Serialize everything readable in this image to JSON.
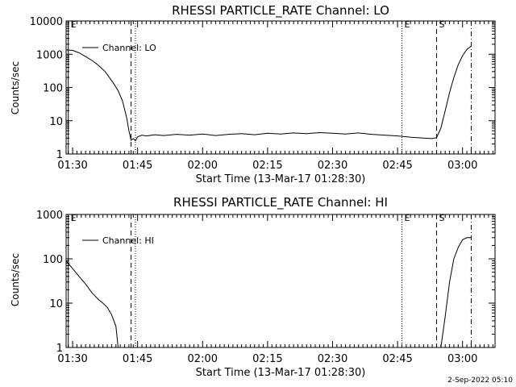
{
  "footer": {
    "timestamp": "2-Sep-2022 05:10"
  },
  "chart_data": [
    {
      "type": "line",
      "title": "RHESSI PARTICLE_RATE Channel: LO",
      "xlabel": "Start Time (13-Mar-17 01:28:30)",
      "ylabel": "Counts/sec",
      "y_scale": "log",
      "xlim": [
        "01:28:30",
        "03:07:30"
      ],
      "ylim": [
        1,
        10000
      ],
      "x_ticks": [
        "01:30",
        "01:45",
        "02:00",
        "02:15",
        "02:30",
        "02:45",
        "03:00"
      ],
      "y_ticks": [
        "1",
        "10",
        "100",
        "1000",
        "10000"
      ],
      "legend": {
        "label": "Channel: LO",
        "placement": "top-left"
      },
      "markers": [
        {
          "label": "E",
          "time": "01:29:00",
          "style": "solid"
        },
        {
          "label": "",
          "time": "01:43:30",
          "style": "dashed"
        },
        {
          "label": "",
          "time": "01:44:30",
          "style": "dotted"
        },
        {
          "label": "E",
          "time": "02:46:00",
          "style": "dotted"
        },
        {
          "label": "S",
          "time": "02:54:00",
          "style": "dashed"
        },
        {
          "label": "",
          "time": "03:02:00",
          "style": "dashdot"
        }
      ],
      "series": [
        {
          "name": "Channel: LO",
          "x": [
            "01:28:30",
            "01:30:00",
            "01:31:30",
            "01:33:00",
            "01:34:30",
            "01:36:00",
            "01:37:30",
            "01:38:30",
            "01:39:30",
            "01:40:30",
            "01:41:30",
            "01:42:30",
            "01:43:00",
            "01:43:30",
            "01:44:00",
            "01:44:30",
            "01:45:00",
            "01:46:00",
            "01:47:00",
            "01:49:00",
            "01:51:00",
            "01:54:00",
            "01:57:00",
            "02:00:00",
            "02:03:00",
            "02:06:00",
            "02:09:00",
            "02:12:00",
            "02:15:00",
            "02:18:00",
            "02:21:00",
            "02:24:00",
            "02:27:00",
            "02:30:00",
            "02:33:00",
            "02:36:00",
            "02:39:00",
            "02:42:00",
            "02:45:00",
            "02:48:00",
            "02:51:00",
            "02:53:00",
            "02:54:00",
            "02:55:00",
            "02:56:00",
            "02:57:00",
            "02:58:00",
            "02:59:00",
            "03:00:00",
            "03:01:00",
            "03:02:00"
          ],
          "values": [
            1350,
            1300,
            1100,
            850,
            650,
            460,
            300,
            200,
            130,
            80,
            40,
            12,
            5,
            2.6,
            2.9,
            2.5,
            3.3,
            3.7,
            3.5,
            3.8,
            3.6,
            3.9,
            3.7,
            4.0,
            3.6,
            3.9,
            4.1,
            3.8,
            4.2,
            4.0,
            4.3,
            4.1,
            4.4,
            4.2,
            4.0,
            4.3,
            3.9,
            3.7,
            3.5,
            3.2,
            3.0,
            2.9,
            3.1,
            6,
            20,
            70,
            200,
            480,
            900,
            1400,
            1750
          ]
        }
      ]
    },
    {
      "type": "line",
      "title": "RHESSI PARTICLE_RATE Channel: HI",
      "xlabel": "Start Time (13-Mar-17 01:28:30)",
      "ylabel": "Counts/sec",
      "y_scale": "log",
      "xlim": [
        "01:28:30",
        "03:07:30"
      ],
      "ylim": [
        1,
        1000
      ],
      "x_ticks": [
        "01:30",
        "01:45",
        "02:00",
        "02:15",
        "02:30",
        "02:45",
        "03:00"
      ],
      "y_ticks": [
        "1",
        "10",
        "100",
        "1000"
      ],
      "legend": {
        "label": "Channel: HI",
        "placement": "top-left"
      },
      "markers": [
        {
          "label": "E",
          "time": "01:29:00",
          "style": "solid"
        },
        {
          "label": "",
          "time": "01:43:30",
          "style": "dashed"
        },
        {
          "label": "",
          "time": "01:44:30",
          "style": "dotted"
        },
        {
          "label": "E",
          "time": "02:46:00",
          "style": "dotted"
        },
        {
          "label": "S",
          "time": "02:54:00",
          "style": "dashed"
        },
        {
          "label": "",
          "time": "03:02:00",
          "style": "dashdot"
        }
      ],
      "series": [
        {
          "name": "Channel: HI",
          "x": [
            "01:28:30",
            "01:30:00",
            "01:31:30",
            "01:33:00",
            "01:34:30",
            "01:36:00",
            "01:37:00",
            "01:38:00",
            "01:39:00",
            "01:40:00",
            "01:40:30",
            "02:55:00",
            "02:56:00",
            "02:57:00",
            "02:58:00",
            "02:59:00",
            "03:00:00",
            "03:01:00",
            "03:02:00"
          ],
          "values": [
            90,
            60,
            40,
            27,
            17,
            12,
            10,
            8,
            5.5,
            3,
            1,
            1,
            5,
            30,
            100,
            180,
            270,
            300,
            300
          ]
        }
      ]
    }
  ]
}
